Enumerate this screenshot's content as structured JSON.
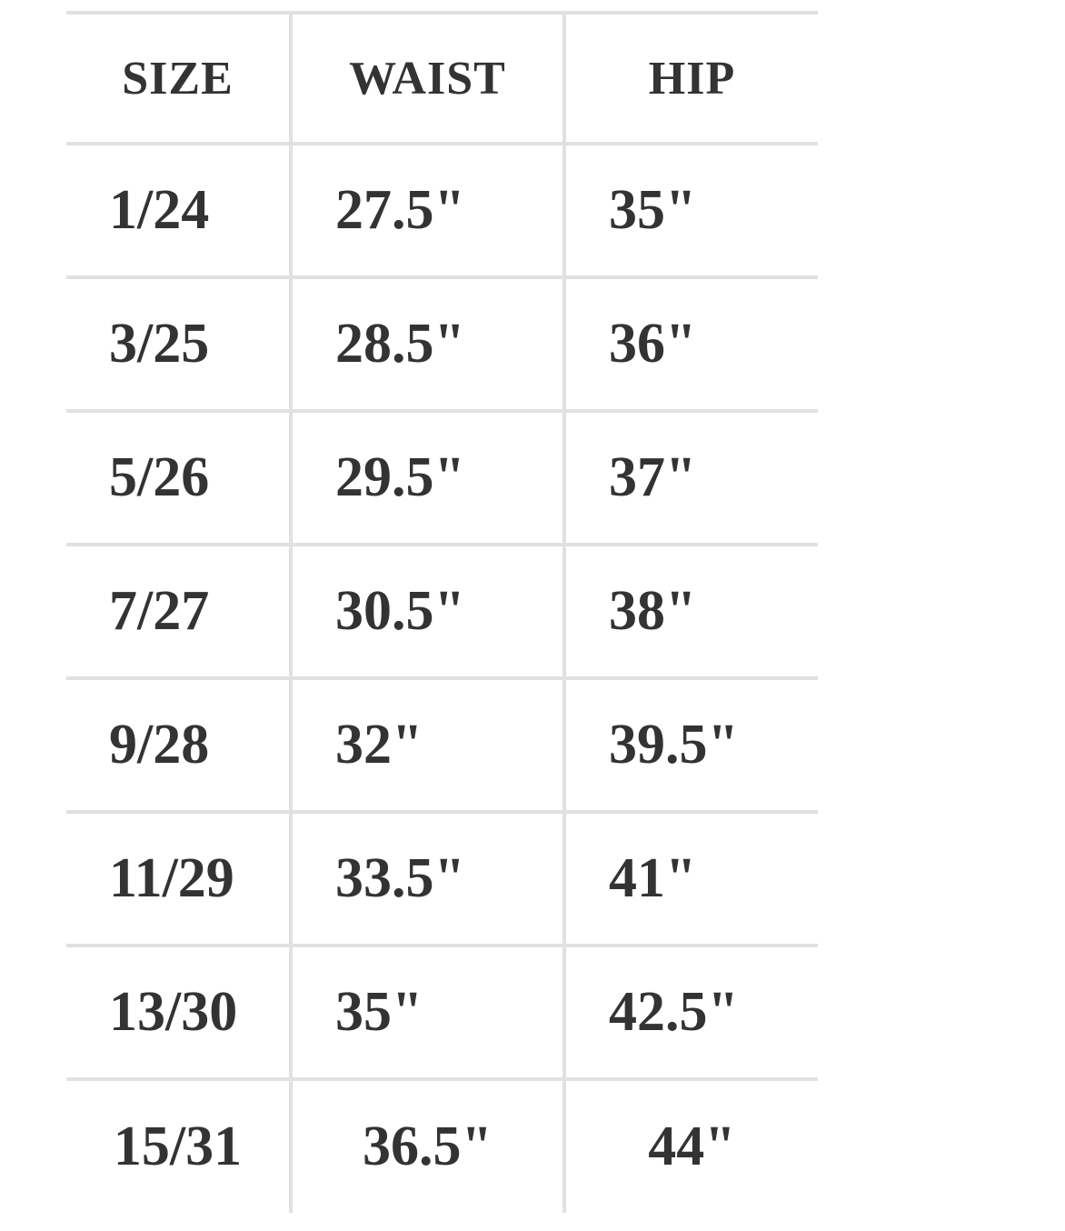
{
  "chart_data": {
    "type": "table",
    "columns": [
      "SIZE",
      "WAIST",
      "HIP"
    ],
    "rows": [
      [
        "1/24",
        "27.5\"",
        "35\""
      ],
      [
        "3/25",
        "28.5\"",
        "36\""
      ],
      [
        "5/26",
        "29.5\"",
        "37\""
      ],
      [
        "7/27",
        "30.5\"",
        "38\""
      ],
      [
        "9/28",
        "32\"",
        "39.5\""
      ],
      [
        "11/29",
        "33.5\"",
        "41\""
      ],
      [
        "13/30",
        "35\"",
        "42.5\""
      ],
      [
        "15/31",
        "36.5\"",
        "44\""
      ]
    ],
    "layout_hints": {
      "grid": "inner horizontal and vertical rules only, no outer left/right/bottom border",
      "last_row_alignment": "center",
      "data_row_alignment": "left"
    }
  },
  "colors": {
    "text": "#333333",
    "border": "#e1e1e1",
    "background": "#ffffff"
  }
}
